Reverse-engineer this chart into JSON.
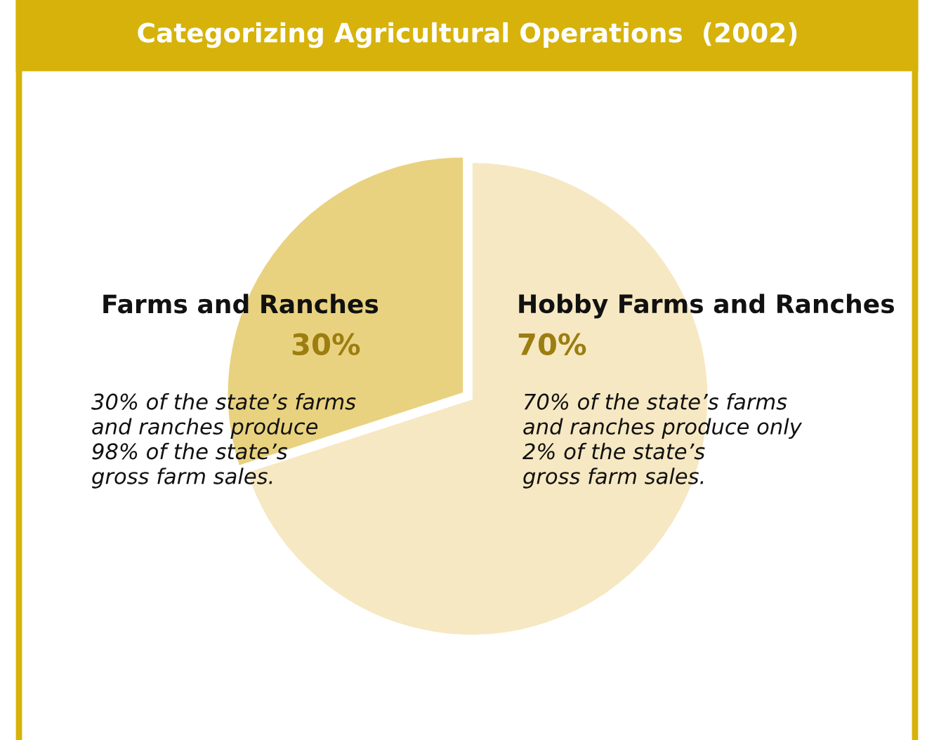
{
  "chart_data": {
    "type": "pie",
    "title": "Categorizing Agricultural Operations  (2002)",
    "categories": [
      "Farms and Ranches",
      "Hobby Farms and Ranches"
    ],
    "values": [
      30,
      70
    ],
    "value_labels": [
      "30%",
      "70%"
    ],
    "colors": [
      "#e9d27f",
      "#f6e8c2"
    ],
    "annotations": [
      "30% of the state’s farms\nand ranches produce\n98% of the state’s\ngross farm sales.",
      "70% of the state’s farms\nand ranches produce only\n2% of the state’s\ngross farm sales."
    ]
  }
}
